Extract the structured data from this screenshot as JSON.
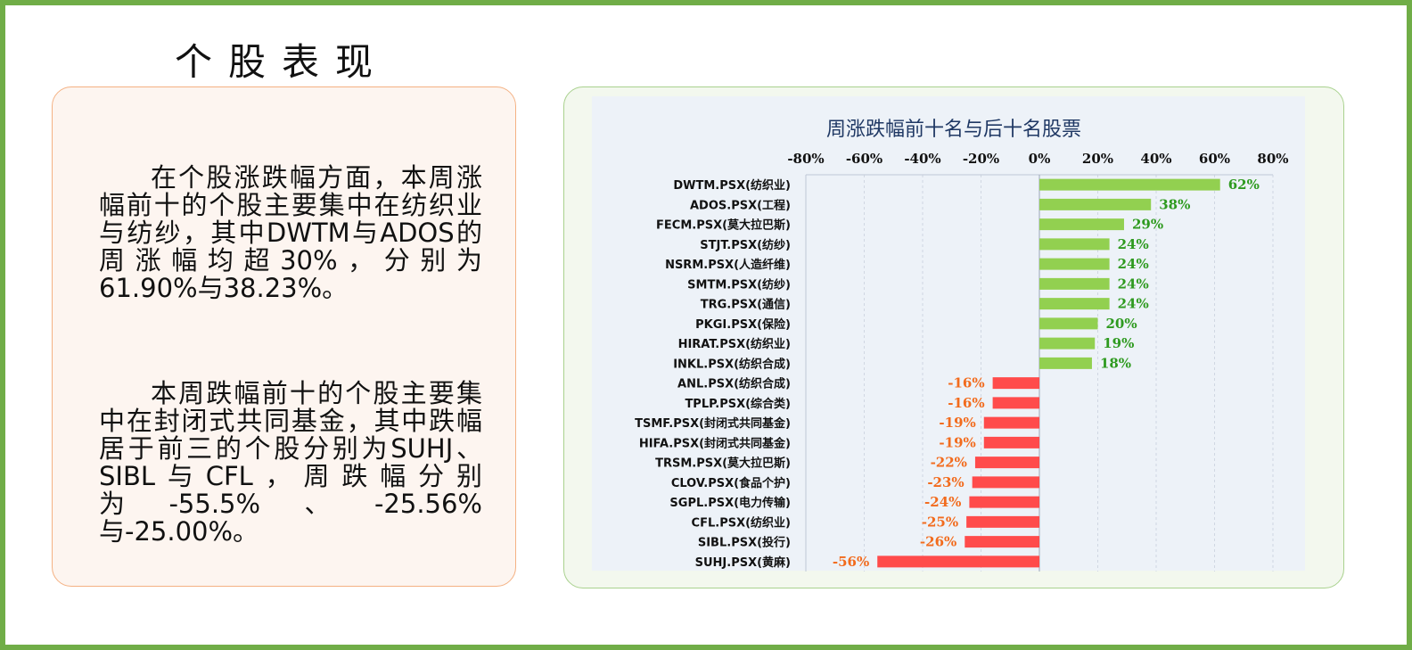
{
  "page": {
    "title": "个股表现"
  },
  "text_panel": {
    "paragraphs": [
      "在个股涨跌幅方面，本周涨幅前十的个股主要集中在纺织业与纺纱，其中DWTM与ADOS的周涨幅均超30%，分别为61.90%与38.23%。",
      "本周跌幅前十的个股主要集中在封闭式共同基金，其中跌幅居于前三的个股分别为SUHJ、SIBL与CFL，周跌幅分别为-55.5%、-25.56%与-25.00%。"
    ]
  },
  "colors": {
    "positive": "#92d050",
    "negative": "#ff4b4b",
    "positive_label": "#2e9a1f",
    "negative_label": "#f26b1d",
    "title": "#1f3864",
    "border_green": "#70ad47"
  },
  "chart_data": {
    "type": "bar",
    "orientation": "horizontal",
    "title": "周涨跌幅前十名与后十名股票",
    "xlim": [
      -80,
      80
    ],
    "x_ticks": [
      -80,
      -60,
      -40,
      -20,
      0,
      20,
      40,
      60,
      80
    ],
    "x_tick_labels": [
      "-80%",
      "-60%",
      "-40%",
      "-20%",
      "0%",
      "20%",
      "40%",
      "60%",
      "80%"
    ],
    "x_axis_position": "top",
    "grid": true,
    "categories": [
      "DWTM.PSX(纺织业)",
      "ADOS.PSX(工程)",
      "FECM.PSX(莫大拉巴斯)",
      "STJT.PSX(纺纱)",
      "NSRM.PSX(人造纤维)",
      "SMTM.PSX(纺纱)",
      "TRG.PSX(通信)",
      "PKGI.PSX(保险)",
      "HIRAT.PSX(纺织业)",
      "INKL.PSX(纺织合成)",
      "ANL.PSX(纺织合成)",
      "TPLP.PSX(综合类)",
      "TSMF.PSX(封闭式共同基金)",
      "HIFA.PSX(封闭式共同基金)",
      "TRSM.PSX(莫大拉巴斯)",
      "CLOV.PSX(食品个护)",
      "SGPL.PSX(电力传输)",
      "CFL.PSX(纺织业)",
      "SIBL.PSX(投行)",
      "SUHJ.PSX(黄麻)"
    ],
    "values": [
      61.9,
      38.23,
      29,
      24,
      24,
      24,
      24,
      20,
      19,
      18,
      -16,
      -16,
      -19,
      -19,
      -22,
      -23,
      -24,
      -25,
      -25.56,
      -55.5
    ],
    "labels": [
      "62%",
      "38%",
      "29%",
      "24%",
      "24%",
      "24%",
      "24%",
      "20%",
      "19%",
      "18%",
      "-16%",
      "-16%",
      "-19%",
      "-19%",
      "-22%",
      "-23%",
      "-24%",
      "-25%",
      "-26%",
      "-56%"
    ]
  }
}
